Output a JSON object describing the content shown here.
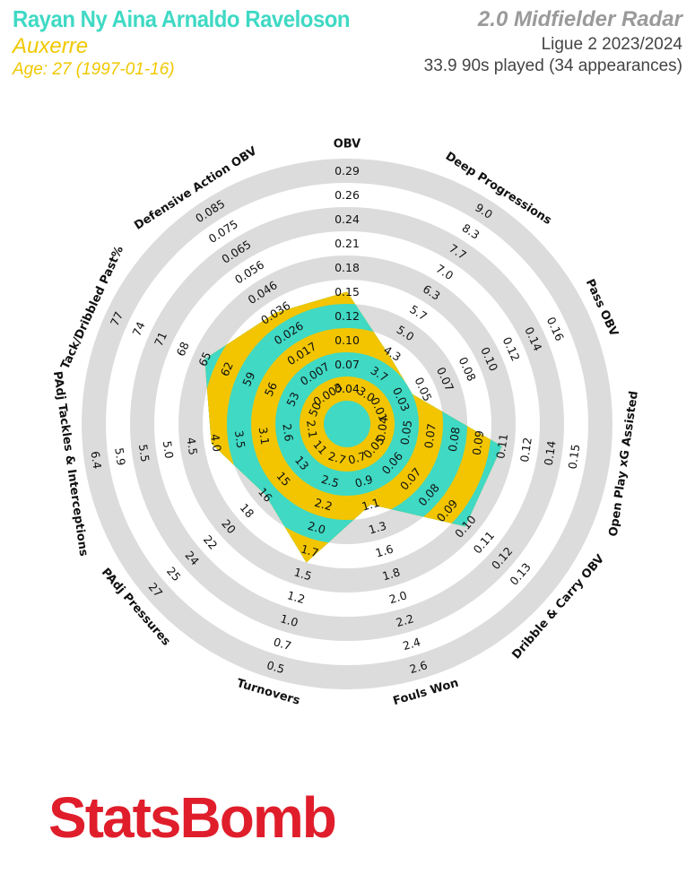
{
  "header": {
    "player_name": "Rayan Ny Aina Arnaldo Raveloson",
    "team": "Auxerre",
    "age": "Age: 27 (1997-01-16)",
    "radar_title": "2.0 Midfielder Radar",
    "league_season": "Ligue 2 2023/2024",
    "minutes": "33.9 90s played (34 appearances)"
  },
  "brand": {
    "logo_text": "StatsBomb"
  },
  "colors": {
    "player_fill": "#3fd9c4",
    "benchmark_fill": "#f2c500",
    "ring_gray": "#dcdcdc",
    "brand_red": "#e01e2b"
  },
  "chart_data": {
    "type": "radar",
    "title": "2.0 Midfielder Radar",
    "axes": [
      {
        "label": "OBV",
        "ticks": [
          "0.04",
          "0.07",
          "0.10",
          "0.12",
          "0.15",
          "0.18",
          "0.21",
          "0.24",
          "0.26",
          "0.29"
        ],
        "value": 0.15
      },
      {
        "label": "Deep Progressions",
        "ticks": [
          "3.0",
          "3.7",
          "4.3",
          "5.0",
          "5.7",
          "6.3",
          "7.0",
          "7.7",
          "8.3",
          "9.0"
        ],
        "value": 4.2
      },
      {
        "label": "Pass OBV",
        "ticks": [
          "0.01",
          "0.03",
          "0.05",
          "0.07",
          "0.08",
          "0.10",
          "0.12",
          "0.14",
          "0.16"
        ],
        "value": 0.04
      },
      {
        "label": "Open Play xG Assisted",
        "ticks": [
          "0.04",
          "0.05",
          "0.07",
          "0.08",
          "0.09",
          "0.11",
          "0.12",
          "0.14",
          "0.15"
        ],
        "value": 0.11
      },
      {
        "label": "Dribble & Carry OBV",
        "ticks": [
          "0.05",
          "0.06",
          "0.07",
          "0.08",
          "0.09",
          "0.10",
          "0.11",
          "0.12",
          "0.13"
        ],
        "value": 0.1
      },
      {
        "label": "Fouls Won",
        "ticks": [
          "0.7",
          "0.9",
          "1.1",
          "1.3",
          "1.6",
          "1.8",
          "2.0",
          "2.2",
          "2.4",
          "2.6"
        ],
        "value": 1.1
      },
      {
        "label": "Turnovers",
        "ticks": [
          "2.7",
          "2.5",
          "2.2",
          "2.0",
          "1.7",
          "1.5",
          "1.2",
          "1.0",
          "0.7",
          "0.5"
        ],
        "value": 1.6
      },
      {
        "label": "PAdj Pressures",
        "ticks": [
          "11",
          "13",
          "15",
          "16",
          "18",
          "20",
          "22",
          "24",
          "25",
          "27"
        ],
        "value": 16
      },
      {
        "label": "PAdj Tackles & Interceptions",
        "ticks": [
          "2.1",
          "2.6",
          "3.1",
          "3.5",
          "4.0",
          "4.5",
          "5.0",
          "5.5",
          "5.9",
          "6.4"
        ],
        "value": 4.1
      },
      {
        "label": "Tack/Dribbled Past%",
        "ticks": [
          "50",
          "53",
          "56",
          "59",
          "62",
          "65",
          "68",
          "71",
          "74",
          "77"
        ],
        "value": 65
      },
      {
        "label": "Defensive Action OBV",
        "ticks": [
          "0.003",
          "0.007",
          "0.017",
          "0.026",
          "0.036",
          "0.046",
          "0.056",
          "0.065",
          "0.075",
          "0.085"
        ],
        "value": 0.036
      }
    ],
    "extra_center_ticks": [
      "-0.003",
      "-0.01",
      "-0.01",
      "0.04"
    ]
  }
}
